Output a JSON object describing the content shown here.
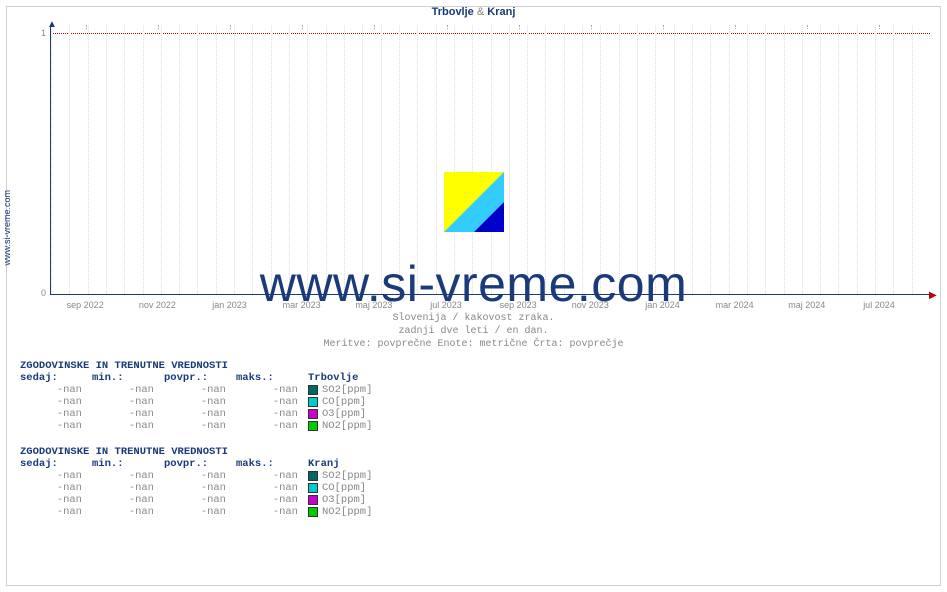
{
  "title": {
    "station1": "Trbovlje",
    "amp": "&",
    "station2": "Kranj"
  },
  "site_label": "www.si-vreme.com",
  "watermark": "www.si-vreme.com",
  "chart": {
    "type": "line",
    "ylim": [
      0,
      1.05
    ],
    "yticks": [
      0,
      1
    ],
    "ytick_labels": [
      "0",
      "1"
    ],
    "x_major_labels": [
      "sep 2022",
      "nov 2022",
      "jan 2023",
      "mar 2023",
      "maj 2023",
      "jul 2023",
      "sep 2023",
      "nov 2023",
      "jan 2024",
      "mar 2024",
      "maj 2024",
      "jul 2024"
    ],
    "x_major_positions_pct": [
      4,
      12.2,
      20.4,
      28.6,
      36.8,
      45,
      53.2,
      61.4,
      69.6,
      77.8,
      86,
      94.2
    ],
    "grid_marker_color": "#bb0000",
    "axis_color": "#1a3a7a",
    "minor_tick_color": "#dddddd",
    "major_tick_color": "#aaaaaa",
    "label_color": "#888888",
    "background_color": "#ffffff",
    "series": []
  },
  "subcaptions": {
    "l1": "Slovenija / kakovost zraka.",
    "l2": "zadnji dve leti / en dan.",
    "l3": "Meritve: povprečne  Enote: metrične  Črta: povprečje"
  },
  "table_title": "ZGODOVINSKE IN TRENUTNE VREDNOSTI",
  "table_headers": {
    "now": "sedaj:",
    "min": "min.:",
    "avg": "povpr.:",
    "max": "maks.:"
  },
  "nan": "-nan",
  "stations": [
    {
      "name": "Trbovlje",
      "rows": [
        {
          "m": "SO2[ppm]",
          "color": "#006666"
        },
        {
          "m": "CO[ppm]",
          "color": "#00cccc"
        },
        {
          "m": "O3[ppm]",
          "color": "#cc00cc"
        },
        {
          "m": "NO2[ppm]",
          "color": "#00cc00"
        }
      ]
    },
    {
      "name": "Kranj",
      "rows": [
        {
          "m": "SO2[ppm]",
          "color": "#006666"
        },
        {
          "m": "CO[ppm]",
          "color": "#00cccc"
        },
        {
          "m": "O3[ppm]",
          "color": "#cc00cc"
        },
        {
          "m": "NO2[ppm]",
          "color": "#00cc00"
        }
      ]
    }
  ],
  "logo_colors": {
    "a": "#ffff00",
    "b": "#33ccff",
    "c": "#0000cc"
  }
}
